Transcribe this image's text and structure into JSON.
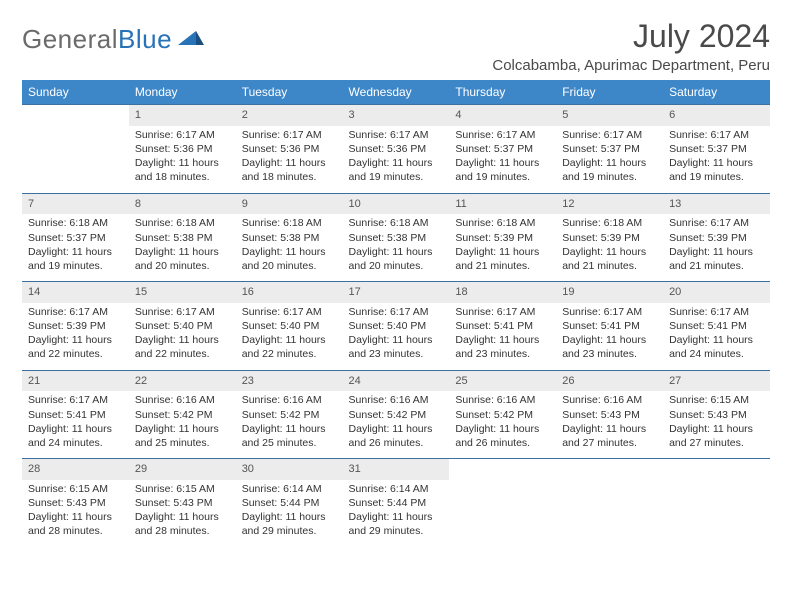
{
  "brand": {
    "part1": "General",
    "part2": "Blue"
  },
  "title": "July 2024",
  "location": "Colcabamba, Apurimac Department, Peru",
  "colors": {
    "header_bg": "#3d87c9",
    "header_text": "#ffffff",
    "daynum_bg": "#ececec",
    "week_border": "#3d6fa0",
    "logo_gray": "#6b6b6b",
    "logo_blue": "#2872b8"
  },
  "dayHeaders": [
    "Sunday",
    "Monday",
    "Tuesday",
    "Wednesday",
    "Thursday",
    "Friday",
    "Saturday"
  ],
  "weeks": [
    [
      null,
      {
        "n": "1",
        "sr": "6:17 AM",
        "ss": "5:36 PM",
        "dl": "11 hours and 18 minutes."
      },
      {
        "n": "2",
        "sr": "6:17 AM",
        "ss": "5:36 PM",
        "dl": "11 hours and 18 minutes."
      },
      {
        "n": "3",
        "sr": "6:17 AM",
        "ss": "5:36 PM",
        "dl": "11 hours and 19 minutes."
      },
      {
        "n": "4",
        "sr": "6:17 AM",
        "ss": "5:37 PM",
        "dl": "11 hours and 19 minutes."
      },
      {
        "n": "5",
        "sr": "6:17 AM",
        "ss": "5:37 PM",
        "dl": "11 hours and 19 minutes."
      },
      {
        "n": "6",
        "sr": "6:17 AM",
        "ss": "5:37 PM",
        "dl": "11 hours and 19 minutes."
      }
    ],
    [
      {
        "n": "7",
        "sr": "6:18 AM",
        "ss": "5:37 PM",
        "dl": "11 hours and 19 minutes."
      },
      {
        "n": "8",
        "sr": "6:18 AM",
        "ss": "5:38 PM",
        "dl": "11 hours and 20 minutes."
      },
      {
        "n": "9",
        "sr": "6:18 AM",
        "ss": "5:38 PM",
        "dl": "11 hours and 20 minutes."
      },
      {
        "n": "10",
        "sr": "6:18 AM",
        "ss": "5:38 PM",
        "dl": "11 hours and 20 minutes."
      },
      {
        "n": "11",
        "sr": "6:18 AM",
        "ss": "5:39 PM",
        "dl": "11 hours and 21 minutes."
      },
      {
        "n": "12",
        "sr": "6:18 AM",
        "ss": "5:39 PM",
        "dl": "11 hours and 21 minutes."
      },
      {
        "n": "13",
        "sr": "6:17 AM",
        "ss": "5:39 PM",
        "dl": "11 hours and 21 minutes."
      }
    ],
    [
      {
        "n": "14",
        "sr": "6:17 AM",
        "ss": "5:39 PM",
        "dl": "11 hours and 22 minutes."
      },
      {
        "n": "15",
        "sr": "6:17 AM",
        "ss": "5:40 PM",
        "dl": "11 hours and 22 minutes."
      },
      {
        "n": "16",
        "sr": "6:17 AM",
        "ss": "5:40 PM",
        "dl": "11 hours and 22 minutes."
      },
      {
        "n": "17",
        "sr": "6:17 AM",
        "ss": "5:40 PM",
        "dl": "11 hours and 23 minutes."
      },
      {
        "n": "18",
        "sr": "6:17 AM",
        "ss": "5:41 PM",
        "dl": "11 hours and 23 minutes."
      },
      {
        "n": "19",
        "sr": "6:17 AM",
        "ss": "5:41 PM",
        "dl": "11 hours and 23 minutes."
      },
      {
        "n": "20",
        "sr": "6:17 AM",
        "ss": "5:41 PM",
        "dl": "11 hours and 24 minutes."
      }
    ],
    [
      {
        "n": "21",
        "sr": "6:17 AM",
        "ss": "5:41 PM",
        "dl": "11 hours and 24 minutes."
      },
      {
        "n": "22",
        "sr": "6:16 AM",
        "ss": "5:42 PM",
        "dl": "11 hours and 25 minutes."
      },
      {
        "n": "23",
        "sr": "6:16 AM",
        "ss": "5:42 PM",
        "dl": "11 hours and 25 minutes."
      },
      {
        "n": "24",
        "sr": "6:16 AM",
        "ss": "5:42 PM",
        "dl": "11 hours and 26 minutes."
      },
      {
        "n": "25",
        "sr": "6:16 AM",
        "ss": "5:42 PM",
        "dl": "11 hours and 26 minutes."
      },
      {
        "n": "26",
        "sr": "6:16 AM",
        "ss": "5:43 PM",
        "dl": "11 hours and 27 minutes."
      },
      {
        "n": "27",
        "sr": "6:15 AM",
        "ss": "5:43 PM",
        "dl": "11 hours and 27 minutes."
      }
    ],
    [
      {
        "n": "28",
        "sr": "6:15 AM",
        "ss": "5:43 PM",
        "dl": "11 hours and 28 minutes."
      },
      {
        "n": "29",
        "sr": "6:15 AM",
        "ss": "5:43 PM",
        "dl": "11 hours and 28 minutes."
      },
      {
        "n": "30",
        "sr": "6:14 AM",
        "ss": "5:44 PM",
        "dl": "11 hours and 29 minutes."
      },
      {
        "n": "31",
        "sr": "6:14 AM",
        "ss": "5:44 PM",
        "dl": "11 hours and 29 minutes."
      },
      null,
      null,
      null
    ]
  ],
  "labels": {
    "sunrise": "Sunrise:",
    "sunset": "Sunset:",
    "daylight": "Daylight:"
  }
}
